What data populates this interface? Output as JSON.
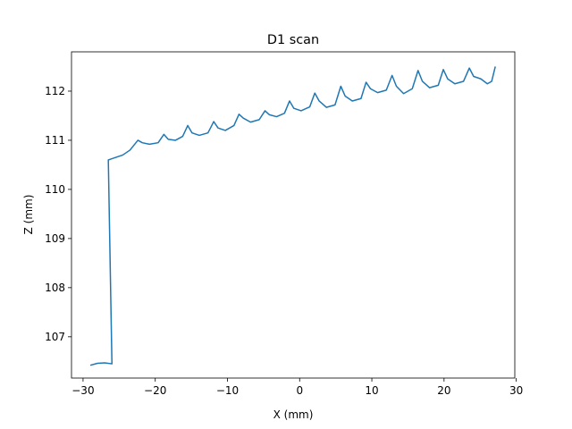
{
  "chart_data": {
    "type": "line",
    "title": "D1 scan",
    "x_label": "X (mm)",
    "y_label": "Z (mm)",
    "xlim": [
      -31.6,
      29.8
    ],
    "ylim": [
      106.16,
      112.8
    ],
    "xticks": [
      {
        "value": -30,
        "label": "−30"
      },
      {
        "value": -20,
        "label": "−20"
      },
      {
        "value": -10,
        "label": "−10"
      },
      0,
      10,
      20,
      30
    ],
    "yticks": [
      107,
      108,
      109,
      110,
      111,
      112
    ],
    "grid": false,
    "series": [
      {
        "color": "#1f77b4",
        "x": [
          -29,
          -28,
          -27,
          -26,
          -26.5,
          -25.5,
          -24.5,
          -23.5,
          -22.4,
          -21.8,
          -20.8,
          -19.6,
          -18.8,
          -18.2,
          -17.2,
          -16.2,
          -15.5,
          -14.9,
          -13.9,
          -12.7,
          -11.9,
          -11.3,
          -10.3,
          -9.1,
          -8.4,
          -7.8,
          -6.8,
          -5.6,
          -4.8,
          -4.2,
          -3.2,
          -2.1,
          -1.4,
          -0.8,
          0.2,
          1.4,
          2.1,
          2.7,
          3.7,
          4.9,
          5.7,
          6.3,
          7.3,
          8.5,
          9.2,
          9.8,
          10.8,
          12.0,
          12.8,
          13.4,
          14.4,
          15.6,
          16.4,
          17.0,
          18.0,
          19.2,
          19.9,
          20.5,
          21.5,
          22.7,
          23.5,
          24.1,
          25.1,
          26.0,
          26.6,
          27.1
        ],
        "values": [
          106.42,
          106.46,
          106.47,
          106.45,
          110.6,
          110.65,
          110.7,
          110.8,
          111.0,
          110.95,
          110.92,
          110.95,
          111.12,
          111.02,
          111.0,
          111.08,
          111.3,
          111.15,
          111.1,
          111.15,
          111.38,
          111.25,
          111.2,
          111.3,
          111.53,
          111.45,
          111.37,
          111.42,
          111.6,
          111.52,
          111.48,
          111.55,
          111.8,
          111.65,
          111.6,
          111.68,
          111.96,
          111.8,
          111.67,
          111.72,
          112.1,
          111.9,
          111.8,
          111.85,
          112.18,
          112.05,
          111.97,
          112.02,
          112.32,
          112.1,
          111.95,
          112.05,
          112.42,
          112.2,
          112.07,
          112.12,
          112.44,
          112.25,
          112.15,
          112.2,
          112.47,
          112.3,
          112.25,
          112.15,
          112.2,
          112.5
        ]
      }
    ]
  }
}
